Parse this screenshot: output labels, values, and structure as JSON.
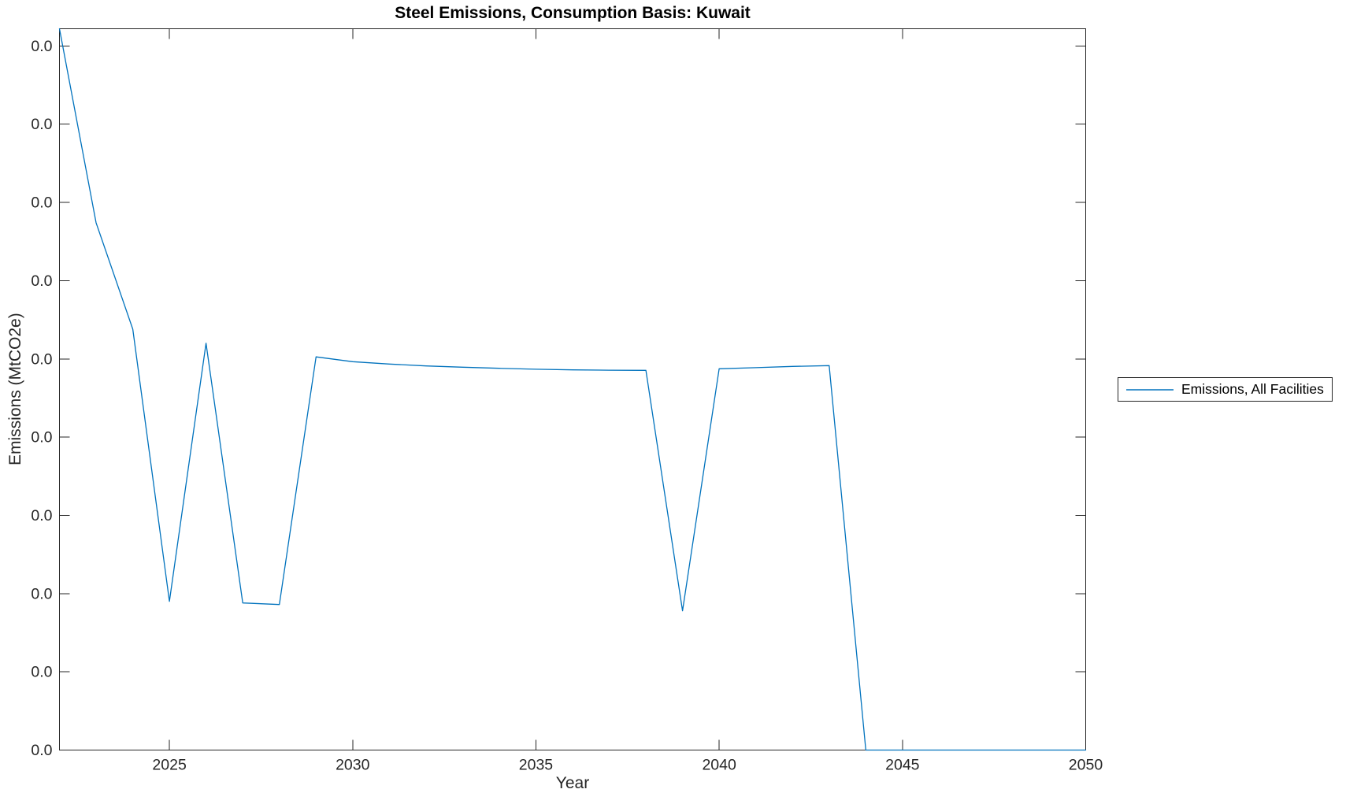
{
  "chart_data": {
    "type": "line",
    "title": "Steel Emissions, Consumption Basis: Kuwait",
    "xlabel": "Year",
    "ylabel": "Emissions (MtCO2e)",
    "legend_entries": [
      "Emissions, All Facilities"
    ],
    "legend_position": "right-outside-center",
    "grid": false,
    "xlim": [
      2022,
      2050
    ],
    "ylim": [
      0,
      0.0461
    ],
    "xticks": [
      2025,
      2030,
      2035,
      2040,
      2045,
      2050
    ],
    "xtick_labels": [
      "2025",
      "2030",
      "2035",
      "2040",
      "2045",
      "2050"
    ],
    "ytick_values": [
      0,
      0.005,
      0.01,
      0.015,
      0.02,
      0.025,
      0.03,
      0.035,
      0.04,
      0.045
    ],
    "ytick_labels": [
      "0.0",
      "0.0",
      "0.0",
      "0.0",
      "0.0",
      "0.0",
      "0.0",
      "0.0",
      "0.0",
      "0.0"
    ],
    "ytick_display_note": "every y tick label renders as 0.0; series values below are estimated from pixel positions on that unlabeled tiny scale",
    "x": [
      2022,
      2023,
      2024,
      2025,
      2026,
      2027,
      2028,
      2029,
      2030,
      2031,
      2032,
      2033,
      2034,
      2035,
      2036,
      2037,
      2038,
      2039,
      2040,
      2041,
      2042,
      2043,
      2044,
      2045,
      2046,
      2047,
      2048,
      2049,
      2050
    ],
    "series": [
      {
        "name": "Emissions, All Facilities",
        "color": "#0072BD",
        "values": [
          0.0461,
          0.0337,
          0.0269,
          0.0095,
          0.026,
          0.0094,
          0.0093,
          0.02513,
          0.02482,
          0.02467,
          0.02455,
          0.02447,
          0.0244,
          0.02434,
          0.0243,
          0.02428,
          0.02427,
          0.0089,
          0.02437,
          0.02444,
          0.02452,
          0.02457,
          0,
          0,
          0,
          0,
          0,
          0,
          0
        ]
      }
    ],
    "colors": {
      "line": "#0072BD",
      "axis": "#262626",
      "tick_text": "#262626",
      "title_text": "#000000",
      "background": "#ffffff"
    }
  }
}
